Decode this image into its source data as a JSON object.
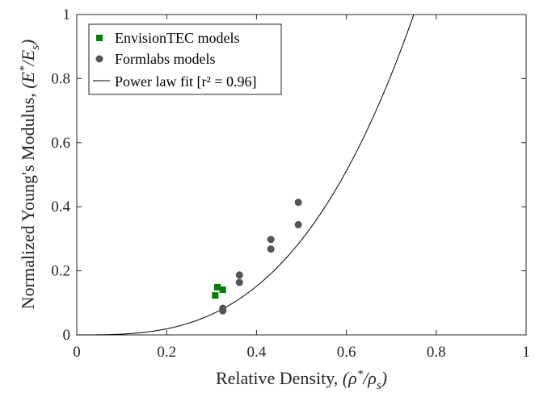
{
  "chart_data": {
    "type": "scatter",
    "xlabel_main": "Relative Density, ",
    "xlabel_math": "(ρ*/ρs)",
    "ylabel_main": "Normalized Young's Modulus, ",
    "ylabel_math": "(E*/Es)",
    "xlim": [
      0,
      1
    ],
    "ylim": [
      0,
      1
    ],
    "x_ticks": [
      0,
      0.2,
      0.4,
      0.6,
      0.8,
      1
    ],
    "x_tick_labels": [
      "0",
      "0.2",
      "0.4",
      "0.6",
      "0.8",
      "1"
    ],
    "y_ticks": [
      0,
      0.2,
      0.4,
      0.6,
      0.8,
      1
    ],
    "y_tick_labels": [
      "0",
      "0.2",
      "0.4",
      "0.6",
      "0.8",
      "1"
    ],
    "grid": false,
    "legend_position": "top-left",
    "series": [
      {
        "name": "EnvisionTEC models",
        "marker": "square",
        "color": "#008000",
        "points": [
          [
            0.308,
            0.123
          ],
          [
            0.313,
            0.149
          ],
          [
            0.325,
            0.141
          ]
        ]
      },
      {
        "name": "Formlabs models",
        "marker": "circle",
        "color": "#555555",
        "points": [
          [
            0.325,
            0.083
          ],
          [
            0.325,
            0.075
          ],
          [
            0.362,
            0.187
          ],
          [
            0.362,
            0.164
          ],
          [
            0.432,
            0.298
          ],
          [
            0.432,
            0.268
          ],
          [
            0.493,
            0.414
          ],
          [
            0.493,
            0.344
          ]
        ]
      },
      {
        "name": "Power law fit [r² = 0.96]",
        "type": "line",
        "color": "#000000",
        "power_law": {
          "coefficient": 2.37,
          "exponent": 3
        }
      }
    ]
  }
}
